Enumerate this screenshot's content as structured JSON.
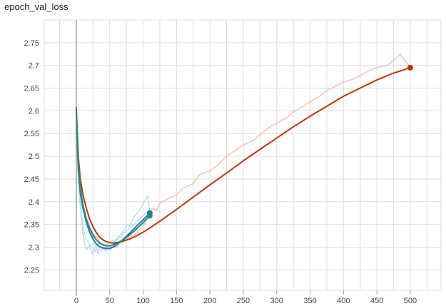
{
  "chart_data": {
    "title": "epoch_val_loss",
    "type": "line",
    "xlabel": "",
    "ylabel": "",
    "xlim": [
      -48,
      546
    ],
    "ylim": [
      2.205,
      2.8
    ],
    "x_ticks": [
      0,
      50,
      100,
      150,
      200,
      250,
      300,
      350,
      400,
      450,
      500
    ],
    "y_ticks": [
      2.25,
      2.3,
      2.35,
      2.4,
      2.45,
      2.5,
      2.55,
      2.6,
      2.65,
      2.7,
      2.75
    ],
    "grid": true,
    "legend": "none",
    "series": [
      {
        "color": "#bf360c",
        "raw_color": "#f1b9a8",
        "smoothed": [
          [
            0,
            2.607
          ],
          [
            3,
            2.5
          ],
          [
            6,
            2.45
          ],
          [
            10,
            2.415
          ],
          [
            15,
            2.385
          ],
          [
            20,
            2.362
          ],
          [
            25,
            2.345
          ],
          [
            30,
            2.332
          ],
          [
            35,
            2.322
          ],
          [
            40,
            2.316
          ],
          [
            45,
            2.312
          ],
          [
            50,
            2.31
          ],
          [
            55,
            2.309
          ],
          [
            60,
            2.31
          ],
          [
            70,
            2.313
          ],
          [
            80,
            2.318
          ],
          [
            90,
            2.325
          ],
          [
            100,
            2.333
          ],
          [
            110,
            2.342
          ],
          [
            125,
            2.357
          ],
          [
            150,
            2.383
          ],
          [
            175,
            2.41
          ],
          [
            200,
            2.437
          ],
          [
            225,
            2.463
          ],
          [
            250,
            2.49
          ],
          [
            275,
            2.515
          ],
          [
            300,
            2.54
          ],
          [
            325,
            2.565
          ],
          [
            350,
            2.588
          ],
          [
            375,
            2.61
          ],
          [
            400,
            2.632
          ],
          [
            425,
            2.65
          ],
          [
            450,
            2.668
          ],
          [
            475,
            2.683
          ],
          [
            490,
            2.69
          ],
          [
            500,
            2.695
          ]
        ],
        "raw": [
          [
            0,
            2.59
          ],
          [
            3,
            2.47
          ],
          [
            6,
            2.42
          ],
          [
            10,
            2.385
          ],
          [
            15,
            2.36
          ],
          [
            20,
            2.345
          ],
          [
            25,
            2.33
          ],
          [
            30,
            2.322
          ],
          [
            35,
            2.312
          ],
          [
            40,
            2.305
          ],
          [
            45,
            2.3
          ],
          [
            50,
            2.298
          ],
          [
            55,
            2.302
          ],
          [
            60,
            2.3
          ],
          [
            65,
            2.308
          ],
          [
            70,
            2.312
          ],
          [
            80,
            2.322
          ],
          [
            90,
            2.33
          ],
          [
            100,
            2.345
          ],
          [
            110,
            2.375
          ],
          [
            115,
            2.385
          ],
          [
            120,
            2.38
          ],
          [
            125,
            2.396
          ],
          [
            135,
            2.405
          ],
          [
            150,
            2.415
          ],
          [
            160,
            2.43
          ],
          [
            175,
            2.44
          ],
          [
            185,
            2.46
          ],
          [
            200,
            2.468
          ],
          [
            210,
            2.478
          ],
          [
            225,
            2.5
          ],
          [
            240,
            2.515
          ],
          [
            250,
            2.525
          ],
          [
            265,
            2.535
          ],
          [
            275,
            2.548
          ],
          [
            290,
            2.565
          ],
          [
            300,
            2.572
          ],
          [
            315,
            2.585
          ],
          [
            325,
            2.598
          ],
          [
            340,
            2.61
          ],
          [
            350,
            2.62
          ],
          [
            365,
            2.633
          ],
          [
            375,
            2.645
          ],
          [
            390,
            2.655
          ],
          [
            400,
            2.663
          ],
          [
            415,
            2.67
          ],
          [
            425,
            2.678
          ],
          [
            440,
            2.69
          ],
          [
            450,
            2.695
          ],
          [
            465,
            2.7
          ],
          [
            475,
            2.71
          ],
          [
            485,
            2.725
          ],
          [
            490,
            2.715
          ],
          [
            500,
            2.695
          ]
        ],
        "end_point": [
          500,
          2.695
        ]
      },
      {
        "color": "#1f77b4",
        "raw_color": "#b3d6ef",
        "smoothed": [
          [
            0,
            2.6
          ],
          [
            3,
            2.47
          ],
          [
            6,
            2.42
          ],
          [
            10,
            2.385
          ],
          [
            15,
            2.355
          ],
          [
            20,
            2.333
          ],
          [
            25,
            2.318
          ],
          [
            30,
            2.307
          ],
          [
            35,
            2.301
          ],
          [
            40,
            2.298
          ],
          [
            45,
            2.297
          ],
          [
            50,
            2.297
          ],
          [
            55,
            2.3
          ],
          [
            60,
            2.305
          ],
          [
            70,
            2.317
          ],
          [
            80,
            2.331
          ],
          [
            90,
            2.346
          ],
          [
            100,
            2.36
          ],
          [
            110,
            2.375
          ]
        ],
        "raw": [
          [
            0,
            2.59
          ],
          [
            4,
            2.42
          ],
          [
            8,
            2.36
          ],
          [
            10,
            2.33
          ],
          [
            12,
            2.31
          ],
          [
            14,
            2.3
          ],
          [
            16,
            2.295
          ],
          [
            18,
            2.3
          ],
          [
            20,
            2.305
          ],
          [
            22,
            2.292
          ],
          [
            24,
            2.285
          ],
          [
            26,
            2.298
          ],
          [
            28,
            2.29
          ],
          [
            30,
            2.3
          ],
          [
            32,
            2.285
          ],
          [
            34,
            2.3
          ],
          [
            36,
            2.295
          ],
          [
            38,
            2.292
          ],
          [
            40,
            2.3
          ],
          [
            42,
            2.298
          ],
          [
            44,
            2.29
          ],
          [
            46,
            2.297
          ],
          [
            48,
            2.3
          ],
          [
            50,
            2.293
          ],
          [
            52,
            2.303
          ],
          [
            54,
            2.3
          ],
          [
            56,
            2.31
          ],
          [
            60,
            2.318
          ],
          [
            64,
            2.325
          ],
          [
            68,
            2.33
          ],
          [
            72,
            2.338
          ],
          [
            76,
            2.35
          ],
          [
            80,
            2.345
          ],
          [
            84,
            2.36
          ],
          [
            88,
            2.37
          ],
          [
            92,
            2.375
          ],
          [
            96,
            2.385
          ],
          [
            100,
            2.395
          ],
          [
            104,
            2.405
          ],
          [
            107,
            2.412
          ],
          [
            110,
            2.375
          ]
        ],
        "end_point": [
          110,
          2.375
        ]
      },
      {
        "color": "#1e8f7f",
        "raw_color": "#b6e0d9",
        "smoothed": [
          [
            0,
            2.6
          ],
          [
            3,
            2.48
          ],
          [
            6,
            2.43
          ],
          [
            10,
            2.392
          ],
          [
            15,
            2.362
          ],
          [
            20,
            2.342
          ],
          [
            25,
            2.327
          ],
          [
            30,
            2.316
          ],
          [
            35,
            2.309
          ],
          [
            40,
            2.305
          ],
          [
            45,
            2.303
          ],
          [
            50,
            2.303
          ],
          [
            55,
            2.305
          ],
          [
            60,
            2.308
          ],
          [
            70,
            2.316
          ],
          [
            80,
            2.327
          ],
          [
            90,
            2.34
          ],
          [
            100,
            2.354
          ],
          [
            110,
            2.369
          ]
        ],
        "raw": [
          [
            0,
            2.6
          ],
          [
            4,
            2.44
          ],
          [
            8,
            2.37
          ],
          [
            10,
            2.345
          ],
          [
            14,
            2.32
          ],
          [
            18,
            2.31
          ],
          [
            22,
            2.302
          ],
          [
            26,
            2.308
          ],
          [
            30,
            2.3
          ],
          [
            34,
            2.312
          ],
          [
            38,
            2.305
          ],
          [
            42,
            2.31
          ],
          [
            46,
            2.305
          ],
          [
            50,
            2.31
          ],
          [
            54,
            2.315
          ],
          [
            58,
            2.312
          ],
          [
            62,
            2.318
          ],
          [
            66,
            2.323
          ],
          [
            70,
            2.328
          ],
          [
            74,
            2.335
          ],
          [
            78,
            2.34
          ],
          [
            82,
            2.345
          ],
          [
            86,
            2.35
          ],
          [
            90,
            2.356
          ],
          [
            94,
            2.362
          ],
          [
            98,
            2.368
          ],
          [
            102,
            2.372
          ],
          [
            106,
            2.378
          ],
          [
            110,
            2.369
          ]
        ],
        "end_point": [
          110,
          2.369
        ]
      }
    ]
  }
}
